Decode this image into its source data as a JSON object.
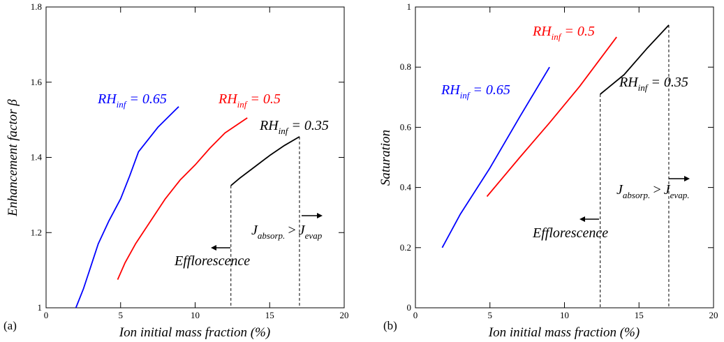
{
  "chart_data": [
    {
      "panel_tag": "(a)",
      "type": "line",
      "xlabel": "Ion initial mass fraction (%)",
      "ylabel": "Enhancement factor β",
      "xlim": [
        0,
        20
      ],
      "ylim": [
        1,
        1.8
      ],
      "x_ticks": [
        0,
        5,
        10,
        15,
        20
      ],
      "y_ticks": [
        1,
        1.2,
        1.4,
        1.6,
        1.8
      ],
      "x_tick_labels": [
        "0",
        "5",
        "10",
        "15",
        "20"
      ],
      "y_tick_labels": [
        "1",
        "1.2",
        "1.4",
        "1.6",
        "1.8"
      ],
      "series": [
        {
          "label_main": "RH",
          "label_sub": "inf",
          "label_value": " = 0.65",
          "color": "#0000ff",
          "x": [
            2.0,
            2.5,
            3.0,
            3.5,
            4.2,
            5.0,
            5.6,
            6.2,
            7.5,
            8.9
          ],
          "y": [
            1.0,
            1.05,
            1.11,
            1.17,
            1.23,
            1.29,
            1.35,
            1.415,
            1.48,
            1.535
          ]
        },
        {
          "label_main": "RH",
          "label_sub": "inf",
          "label_value": " = 0.5",
          "color": "#ff0000",
          "x": [
            4.8,
            5.3,
            6.0,
            7.0,
            8.0,
            9.0,
            10.0,
            11.0,
            12.0,
            13.5
          ],
          "y": [
            1.075,
            1.12,
            1.17,
            1.23,
            1.29,
            1.34,
            1.38,
            1.425,
            1.465,
            1.505
          ]
        },
        {
          "label_main": "RH",
          "label_sub": "inf",
          "label_value": " = 0.35",
          "color": "#000000",
          "x": [
            12.4,
            13.0,
            14.0,
            15.0,
            16.0,
            17.0
          ],
          "y": [
            1.325,
            1.345,
            1.375,
            1.405,
            1.432,
            1.455
          ]
        }
      ],
      "vlines": [
        {
          "x": 12.4,
          "y_top": 1.325
        },
        {
          "x": 17.0,
          "y_top": 1.455
        }
      ],
      "annotations": {
        "efflorescence": "Efflorescence",
        "j_main_1": "J",
        "j_sub_1": "absorp.",
        "gt": ">",
        "j_main_2": "J",
        "j_sub_2": "evap"
      }
    },
    {
      "panel_tag": "(b)",
      "type": "line",
      "xlabel": "Ion initial mass fraction (%)",
      "ylabel": "Saturation",
      "xlim": [
        0,
        20
      ],
      "ylim": [
        0,
        1
      ],
      "x_ticks": [
        0,
        5,
        10,
        15,
        20
      ],
      "y_ticks": [
        0,
        0.2,
        0.4,
        0.6,
        0.8,
        1
      ],
      "x_tick_labels": [
        "0",
        "5",
        "10",
        "15",
        "20"
      ],
      "y_tick_labels": [
        "0",
        "0.2",
        "0.4",
        "0.6",
        "0.8",
        "1"
      ],
      "series": [
        {
          "label_main": "RH",
          "label_sub": "inf",
          "label_value": " = 0.65",
          "color": "#0000ff",
          "x": [
            1.8,
            3.0,
            5.0,
            7.0,
            9.0
          ],
          "y": [
            0.2,
            0.31,
            0.465,
            0.635,
            0.8
          ]
        },
        {
          "label_main": "RH",
          "label_sub": "inf",
          "label_value": " = 0.5",
          "color": "#ff0000",
          "x": [
            4.8,
            7.0,
            9.0,
            11.0,
            13.5
          ],
          "y": [
            0.37,
            0.5,
            0.615,
            0.735,
            0.9
          ]
        },
        {
          "label_main": "RH",
          "label_sub": "inf",
          "label_value": " = 0.35",
          "color": "#000000",
          "x": [
            12.4,
            14.0,
            15.5,
            17.0
          ],
          "y": [
            0.71,
            0.775,
            0.86,
            0.94
          ]
        }
      ],
      "vlines": [
        {
          "x": 12.4,
          "y_top": 0.71
        },
        {
          "x": 17.0,
          "y_top": 0.94
        }
      ],
      "annotations": {
        "efflorescence": "Efflorescence",
        "j_main_1": "J",
        "j_sub_1": "absorp.",
        "gt": ">",
        "j_main_2": "J",
        "j_sub_2": "evap."
      }
    }
  ]
}
